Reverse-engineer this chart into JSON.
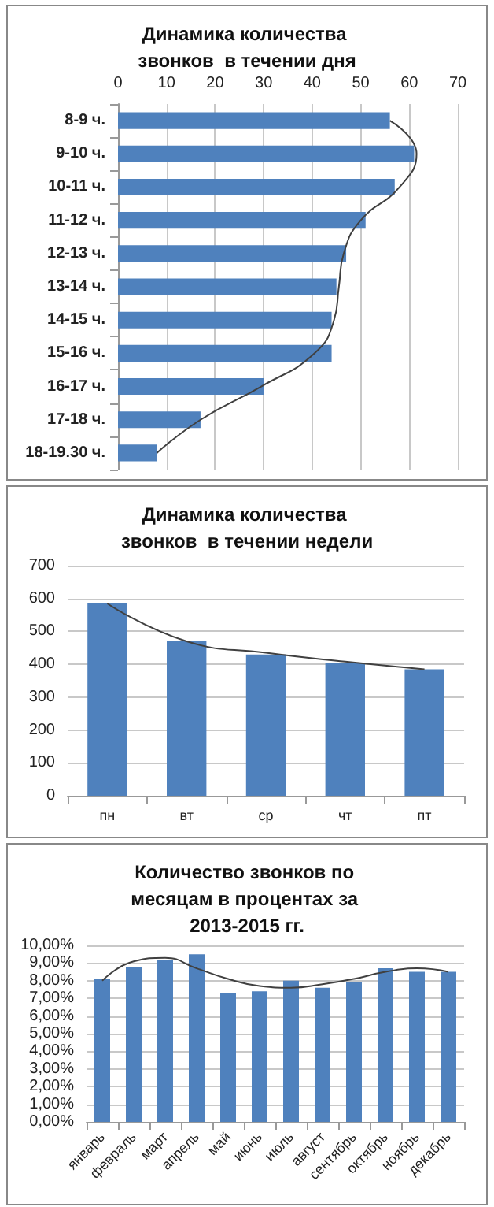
{
  "chart_data": [
    {
      "type": "bar",
      "orientation": "horizontal",
      "title": "Динамика количества звонков  в течении дня",
      "categories": [
        "8-9 ч.",
        "9-10 ч.",
        "10-11 ч.",
        "11-12 ч.",
        "12-13 ч.",
        "13-14 ч.",
        "14-15 ч.",
        "15-16 ч.",
        "16-17 ч.",
        "17-18 ч.",
        "18-19.30 ч."
      ],
      "series": [
        {
          "color": "#4f81bd",
          "values": [
            56,
            61,
            57,
            51,
            47,
            45,
            44,
            44,
            30,
            17,
            8
          ]
        },
        {
          "type": "line",
          "color": "#404040",
          "values": [
            56,
            61.5,
            58,
            50,
            46.5,
            45.5,
            44.5,
            40.5,
            29.5,
            17,
            8
          ]
        }
      ],
      "xlim": [
        0,
        70
      ],
      "xticks": [
        0,
        10,
        20,
        30,
        40,
        50,
        60,
        70
      ],
      "grid": "x",
      "marker": "none"
    },
    {
      "type": "bar",
      "title": "Динамика количества звонков  в течении недели",
      "categories": [
        "пн",
        "вт",
        "ср",
        "чт",
        "пт"
      ],
      "series": [
        {
          "color": "#4f81bd",
          "values": [
            585,
            470,
            430,
            405,
            385
          ]
        },
        {
          "type": "line",
          "color": "#404040",
          "values": [
            585,
            470,
            435,
            408,
            385
          ]
        }
      ],
      "ylim": [
        0,
        700
      ],
      "yticks": [
        0,
        100,
        200,
        300,
        400,
        500,
        600,
        700
      ],
      "grid": "y",
      "marker": "none"
    },
    {
      "type": "bar",
      "title": "Количество звонков по месяцам в процентах за 2013-2015 гг.",
      "categories": [
        "январь",
        "февраль",
        "март",
        "апрель",
        "май",
        "июнь",
        "июль",
        "август",
        "сентябрь",
        "октябрь",
        "ноябрь",
        "декабрь"
      ],
      "series": [
        {
          "color": "#4f81bd",
          "values": [
            8.1,
            8.8,
            9.2,
            9.5,
            7.3,
            7.4,
            8.0,
            7.6,
            7.9,
            8.7,
            8.5,
            8.5
          ]
        },
        {
          "type": "line",
          "color": "#404040",
          "values": [
            8.0,
            9.1,
            9.3,
            8.7,
            8.1,
            7.7,
            7.6,
            7.8,
            8.1,
            8.5,
            8.7,
            8.5
          ]
        }
      ],
      "ylim": [
        0,
        10
      ],
      "yticks": [
        {
          "value": 0,
          "label": "0,00%"
        },
        {
          "value": 1,
          "label": "1,00%"
        },
        {
          "value": 2,
          "label": "2,00%"
        },
        {
          "value": 3,
          "label": "3,00%"
        },
        {
          "value": 4,
          "label": "4,00%"
        },
        {
          "value": 5,
          "label": "5,00%"
        },
        {
          "value": 6,
          "label": "6,00%"
        },
        {
          "value": 7,
          "label": "7,00%"
        },
        {
          "value": 8,
          "label": "8,00%"
        },
        {
          "value": 9,
          "label": "9,00%"
        },
        {
          "value": 10,
          "label": "10,00%"
        }
      ],
      "grid": "y",
      "marker": "none"
    }
  ]
}
